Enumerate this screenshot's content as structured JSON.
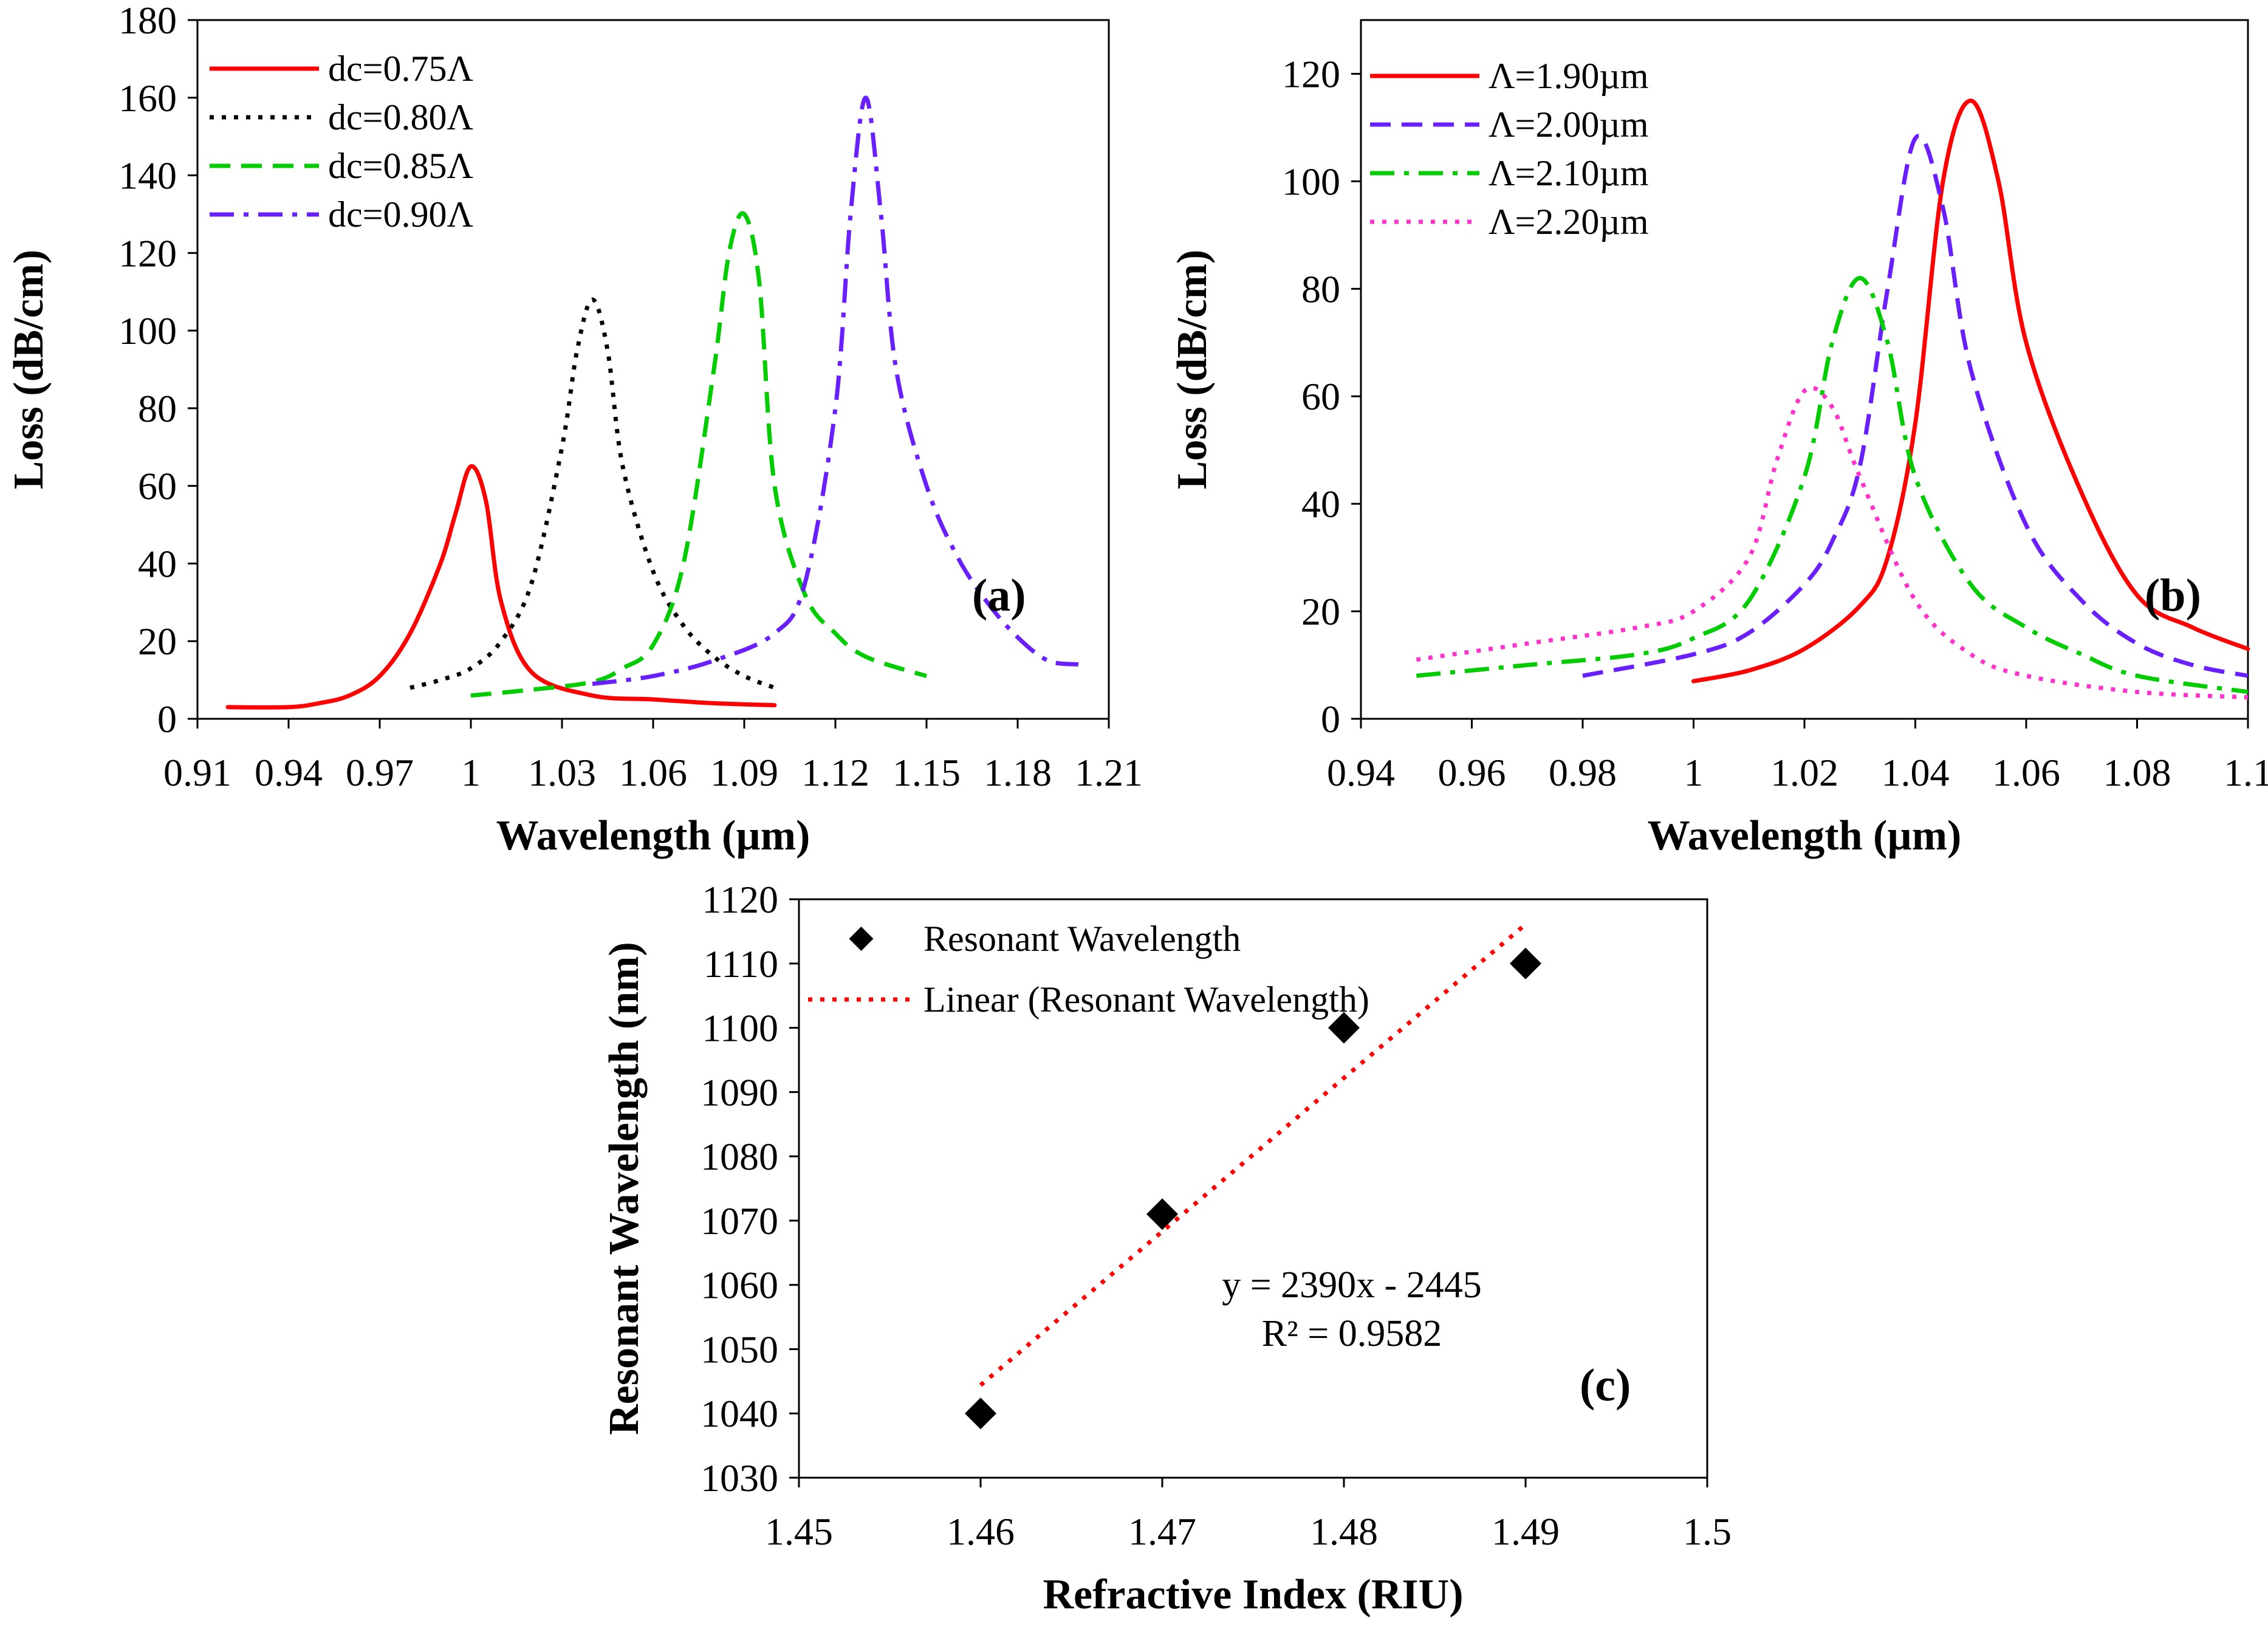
{
  "chart_data": [
    {
      "id": "a",
      "type": "line",
      "panel_label": "(a)",
      "xlabel": "Wavelength (µm)",
      "ylabel": "Loss (dB/cm)",
      "xlim": [
        0.91,
        1.21
      ],
      "ylim": [
        0,
        180
      ],
      "xticks": [
        "0.91",
        "0.94",
        "0.97",
        "1",
        "1.03",
        "1.06",
        "1.09",
        "1.12",
        "1.15",
        "1.18",
        "1.21"
      ],
      "yticks": [
        "0",
        "20",
        "40",
        "60",
        "80",
        "100",
        "120",
        "140",
        "160",
        "180"
      ],
      "legend_position": "top-left",
      "series": [
        {
          "name": "dc=0.75Λ",
          "color": "#ff0000",
          "dash": "solid",
          "x": [
            0.92,
            0.94,
            0.95,
            0.96,
            0.97,
            0.98,
            0.99,
            0.995,
            1.0,
            1.005,
            1.01,
            1.02,
            1.04,
            1.06,
            1.08,
            1.1
          ],
          "y": [
            3,
            3,
            4,
            6,
            11,
            22,
            40,
            53,
            65,
            56,
            30,
            12,
            6,
            5,
            4,
            3.5
          ]
        },
        {
          "name": "dc=0.80Λ",
          "color": "#000000",
          "dash": "dot",
          "x": [
            0.98,
            0.99,
            1.0,
            1.01,
            1.02,
            1.03,
            1.035,
            1.04,
            1.045,
            1.05,
            1.06,
            1.07,
            1.08,
            1.09,
            1.1
          ],
          "y": [
            8,
            10,
            13,
            20,
            35,
            70,
            95,
            108,
            95,
            65,
            38,
            24,
            16,
            11,
            8
          ]
        },
        {
          "name": "dc=0.85Λ",
          "color": "#00cc00",
          "dash": "dash",
          "x": [
            1.0,
            1.02,
            1.04,
            1.05,
            1.06,
            1.07,
            1.08,
            1.085,
            1.09,
            1.095,
            1.1,
            1.11,
            1.12,
            1.13,
            1.15
          ],
          "y": [
            6,
            7.5,
            9.5,
            13,
            19,
            40,
            90,
            120,
            130,
            112,
            60,
            32,
            22,
            16,
            11
          ]
        },
        {
          "name": "dc=0.90Λ",
          "color": "#6a1fff",
          "dash": "dashdot",
          "x": [
            1.04,
            1.06,
            1.08,
            1.1,
            1.11,
            1.12,
            1.125,
            1.13,
            1.135,
            1.14,
            1.15,
            1.16,
            1.17,
            1.18,
            1.19,
            1.2
          ],
          "y": [
            9,
            11,
            15,
            22,
            35,
            80,
            130,
            160,
            130,
            90,
            60,
            42,
            30,
            21,
            15,
            14
          ]
        }
      ]
    },
    {
      "id": "b",
      "type": "line",
      "panel_label": "(b)",
      "xlabel": "Wavelength (µm)",
      "ylabel": "Loss (dB/cm)",
      "xlim": [
        0.94,
        1.1
      ],
      "ylim": [
        0,
        130
      ],
      "xticks": [
        "0.94",
        "0.96",
        "0.98",
        "1",
        "1.02",
        "1.04",
        "1.06",
        "1.08",
        "1.1"
      ],
      "yticks": [
        "0",
        "20",
        "40",
        "60",
        "80",
        "100",
        "120"
      ],
      "legend_position": "top-left",
      "series": [
        {
          "name": "Λ=1.90µm",
          "color": "#ff0000",
          "dash": "solid",
          "x": [
            1.0,
            1.01,
            1.02,
            1.03,
            1.035,
            1.04,
            1.045,
            1.05,
            1.055,
            1.06,
            1.07,
            1.08,
            1.09,
            1.1
          ],
          "y": [
            7,
            9,
            13,
            21,
            30,
            55,
            100,
            115,
            100,
            70,
            42,
            23,
            17,
            13
          ]
        },
        {
          "name": "Λ=2.00µm",
          "color": "#6a1fff",
          "dash": "dash",
          "x": [
            0.98,
            1.0,
            1.01,
            1.02,
            1.025,
            1.03,
            1.035,
            1.04,
            1.045,
            1.05,
            1.06,
            1.07,
            1.08,
            1.09,
            1.1
          ],
          "y": [
            8,
            12,
            16,
            25,
            33,
            47,
            80,
            108,
            95,
            65,
            36,
            22,
            14,
            10,
            8
          ]
        },
        {
          "name": "Λ=2.10µm",
          "color": "#00cc00",
          "dash": "dashdot",
          "x": [
            0.95,
            0.97,
            0.99,
            1.0,
            1.01,
            1.02,
            1.025,
            1.03,
            1.035,
            1.04,
            1.05,
            1.06,
            1.07,
            1.08,
            1.1
          ],
          "y": [
            8,
            10,
            12,
            15,
            22,
            45,
            70,
            82,
            70,
            45,
            25,
            17,
            12,
            8,
            5
          ]
        },
        {
          "name": "Λ=2.20µm",
          "color": "#ff33cc",
          "dash": "dot",
          "x": [
            0.95,
            0.97,
            0.99,
            1.0,
            1.01,
            1.015,
            1.02,
            1.025,
            1.03,
            1.04,
            1.05,
            1.06,
            1.08,
            1.1
          ],
          "y": [
            11,
            14,
            17,
            20,
            30,
            48,
            61,
            58,
            45,
            22,
            12,
            8,
            5,
            4
          ]
        }
      ]
    },
    {
      "id": "c",
      "type": "scatter",
      "panel_label": "(c)",
      "xlabel": "Refractive Index (RIU)",
      "ylabel": "Resonant Wavelength (nm)",
      "xlim": [
        1.45,
        1.5
      ],
      "ylim": [
        1030,
        1120
      ],
      "xticks": [
        "1.45",
        "1.46",
        "1.47",
        "1.48",
        "1.49",
        "1.5"
      ],
      "yticks": [
        "1030",
        "1040",
        "1050",
        "1060",
        "1070",
        "1080",
        "1090",
        "1100",
        "1110",
        "1120"
      ],
      "legend_position": "top-left",
      "series": [
        {
          "name": "Resonant Wavelength",
          "color": "#000000",
          "marker": "diamond",
          "x": [
            1.46,
            1.47,
            1.48,
            1.49
          ],
          "y": [
            1040,
            1071,
            1100,
            1110
          ]
        }
      ],
      "trendline": {
        "name": "Linear (Resonant Wavelength)",
        "color": "#ff0000",
        "dash": "dot",
        "slope": 2390,
        "intercept": -2445,
        "x_range": [
          1.46,
          1.49
        ]
      },
      "equation": "y = 2390x - 2445",
      "r_squared": "R² = 0.9582"
    }
  ]
}
